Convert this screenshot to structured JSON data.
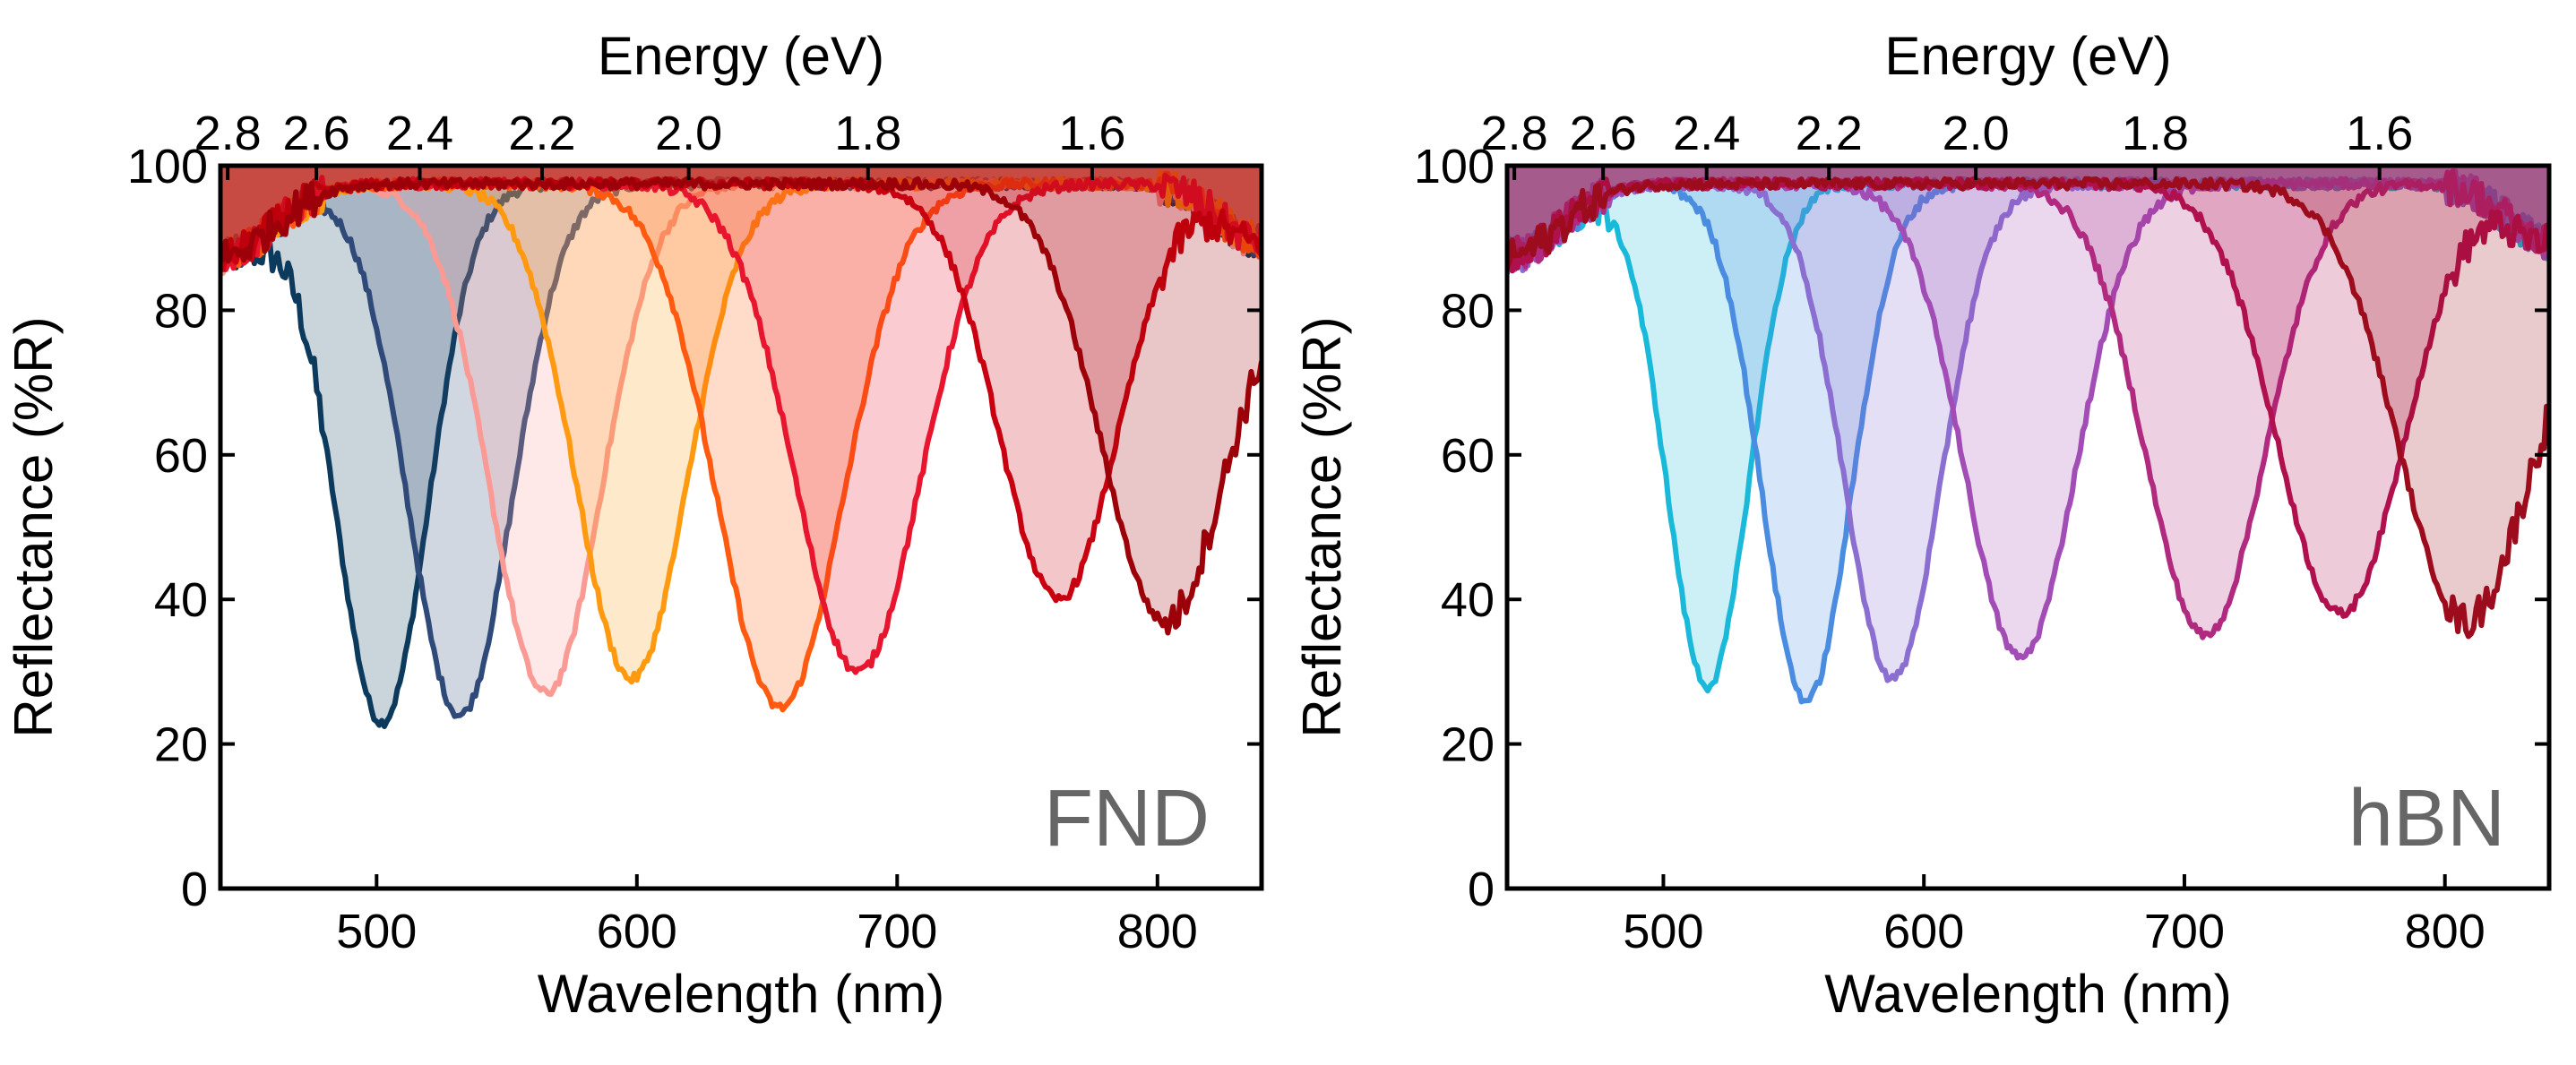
{
  "chart_data": [
    {
      "type": "line",
      "panel_label": "FND",
      "xlabel": "Wavelength (nm)",
      "ylabel": "Reflectance (%R)",
      "top_xlabel": "Energy (eV)",
      "xlim": [
        440,
        840
      ],
      "ylim": [
        0,
        100
      ],
      "xticks": [
        500,
        600,
        700,
        800
      ],
      "yticks": [
        0,
        20,
        40,
        60,
        80,
        100
      ],
      "top_ticks_ev": [
        2.8,
        2.6,
        2.4,
        2.2,
        2.0,
        1.8,
        1.6
      ],
      "top_tick_labels": [
        "2.8",
        "2.6",
        "2.4",
        "2.2",
        "2.0",
        "1.8",
        "1.6"
      ],
      "series": [
        {
          "name": "dip-502nm",
          "center": 502,
          "min": 23,
          "width": 25,
          "color": "#0b3a5c"
        },
        {
          "name": "dip-532nm",
          "center": 532,
          "min": 24,
          "width": 28,
          "color": "#2f4a78"
        },
        {
          "name": "dip-565nm",
          "center": 565,
          "min": 27,
          "width": 30,
          "color": "#f99a95"
        },
        {
          "name": "dip-598nm",
          "center": 598,
          "min": 29,
          "width": 30,
          "color": "#ff9a10"
        },
        {
          "name": "dip-655nm",
          "center": 655,
          "min": 25,
          "width": 34,
          "color": "#ff5a0f"
        },
        {
          "name": "dip-685nm",
          "center": 685,
          "min": 30,
          "width": 34,
          "color": "#e8152f"
        },
        {
          "name": "dip-762nm",
          "center": 762,
          "min": 40,
          "width": 32,
          "color": "#c8000f"
        },
        {
          "name": "dip-803nm",
          "center": 803,
          "min": 37,
          "width": 34,
          "color": "#9c0008"
        }
      ]
    },
    {
      "type": "line",
      "panel_label": "hBN",
      "xlabel": "Wavelength (nm)",
      "ylabel": "Reflectance (%R)",
      "top_xlabel": "Energy (eV)",
      "xlim": [
        440,
        840
      ],
      "ylim": [
        0,
        100
      ],
      "xticks": [
        500,
        600,
        700,
        800
      ],
      "yticks": [
        0,
        20,
        40,
        60,
        80,
        100
      ],
      "top_ticks_ev": [
        2.8,
        2.6,
        2.4,
        2.2,
        2.0,
        1.8,
        1.6
      ],
      "top_tick_labels": [
        "2.8",
        "2.6",
        "2.4",
        "2.2",
        "2.0",
        "1.8",
        "1.6"
      ],
      "series": [
        {
          "name": "dip-517nm",
          "center": 517,
          "min": 28,
          "width": 22,
          "color": "#1ab9d9"
        },
        {
          "name": "dip-555nm",
          "center": 555,
          "min": 26,
          "width": 24,
          "color": "#4a8ce0"
        },
        {
          "name": "dip-588nm",
          "center": 588,
          "min": 29,
          "width": 26,
          "color": "#8a6ed0"
        },
        {
          "name": "dip-637nm",
          "center": 637,
          "min": 32,
          "width": 30,
          "color": "#a24db5"
        },
        {
          "name": "dip-708nm",
          "center": 708,
          "min": 35,
          "width": 32,
          "color": "#b02a80"
        },
        {
          "name": "dip-760nm",
          "center": 760,
          "min": 38,
          "width": 34,
          "color": "#b0104e"
        },
        {
          "name": "dip-808nm",
          "center": 808,
          "min": 37,
          "width": 36,
          "color": "#9c0c1c"
        }
      ]
    }
  ]
}
